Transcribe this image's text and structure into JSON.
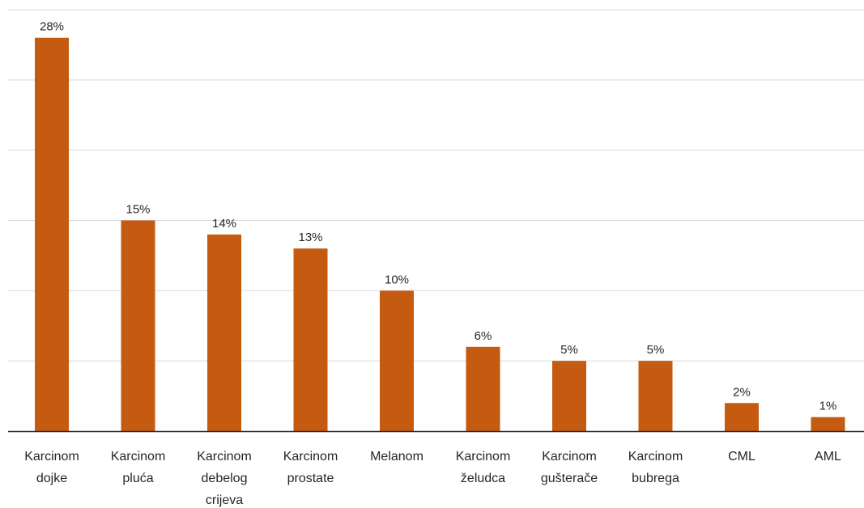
{
  "chart_data": {
    "type": "bar",
    "categories": [
      [
        "Karcinom",
        "dojke"
      ],
      [
        "Karcinom",
        "pluća"
      ],
      [
        "Karcinom",
        "debelog",
        "crijeva"
      ],
      [
        "Karcinom",
        "prostate"
      ],
      [
        "Melanom"
      ],
      [
        "Karcinom",
        "želudca"
      ],
      [
        "Karcinom",
        "gušterače"
      ],
      [
        "Karcinom",
        "bubrega"
      ],
      [
        "CML"
      ],
      [
        "AML"
      ]
    ],
    "values": [
      28,
      15,
      14,
      13,
      10,
      6,
      5,
      5,
      2,
      1
    ],
    "value_labels": [
      "28%",
      "15%",
      "14%",
      "13%",
      "10%",
      "6%",
      "5%",
      "5%",
      "2%",
      "1%"
    ],
    "ylim": [
      0,
      30
    ],
    "grid": true,
    "bar_color": "#C55A11",
    "grid_color": "#D9D9D9",
    "axis_color": "#262626"
  }
}
